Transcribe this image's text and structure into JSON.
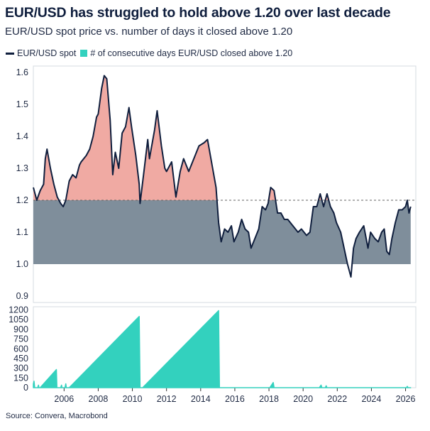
{
  "title": "EUR/USD has struggled to hold above 1.20 over last decade",
  "subtitle": "EUR/USD spot price vs. number of days it closed above 1.20",
  "legend": {
    "spot": "EUR/USD spot",
    "days": "# of consecutive days EUR/USD closed above 1.20"
  },
  "source": "Source: Convera, Macrobond",
  "colors": {
    "spot_line": "#0f1e3d",
    "area_below": "#7f8e9b",
    "area_above": "#f0aaa3",
    "days_area": "#33d1be",
    "reference_line": "#666666"
  },
  "chart_data": [
    {
      "type": "line",
      "title": "EUR/USD spot price",
      "series_name": "EUR/USD spot",
      "ylim": [
        0.88,
        1.62
      ],
      "yticks": [
        "0.9",
        "1.0",
        "1.1",
        "1.2",
        "1.3",
        "1.4",
        "1.5",
        "1.6"
      ],
      "xlim": [
        2004.2,
        2026.6
      ],
      "threshold": 1.2,
      "fill_base": 1.0,
      "points": [
        [
          2004.2,
          1.24
        ],
        [
          2004.4,
          1.2
        ],
        [
          2004.6,
          1.23
        ],
        [
          2004.8,
          1.25
        ],
        [
          2004.9,
          1.33
        ],
        [
          2005.0,
          1.36
        ],
        [
          2005.2,
          1.3
        ],
        [
          2005.4,
          1.25
        ],
        [
          2005.6,
          1.21
        ],
        [
          2005.8,
          1.19
        ],
        [
          2005.95,
          1.18
        ],
        [
          2006.1,
          1.2
        ],
        [
          2006.3,
          1.26
        ],
        [
          2006.5,
          1.28
        ],
        [
          2006.7,
          1.27
        ],
        [
          2006.9,
          1.31
        ],
        [
          2007.0,
          1.32
        ],
        [
          2007.3,
          1.34
        ],
        [
          2007.5,
          1.36
        ],
        [
          2007.7,
          1.4
        ],
        [
          2007.9,
          1.46
        ],
        [
          2008.0,
          1.47
        ],
        [
          2008.2,
          1.55
        ],
        [
          2008.35,
          1.59
        ],
        [
          2008.5,
          1.58
        ],
        [
          2008.7,
          1.45
        ],
        [
          2008.85,
          1.28
        ],
        [
          2009.0,
          1.35
        ],
        [
          2009.2,
          1.3
        ],
        [
          2009.4,
          1.41
        ],
        [
          2009.6,
          1.43
        ],
        [
          2009.8,
          1.49
        ],
        [
          2009.95,
          1.43
        ],
        [
          2010.2,
          1.34
        ],
        [
          2010.4,
          1.25
        ],
        [
          2010.45,
          1.19
        ],
        [
          2010.7,
          1.3
        ],
        [
          2010.9,
          1.39
        ],
        [
          2011.0,
          1.33
        ],
        [
          2011.3,
          1.42
        ],
        [
          2011.45,
          1.48
        ],
        [
          2011.7,
          1.37
        ],
        [
          2011.9,
          1.3
        ],
        [
          2012.0,
          1.29
        ],
        [
          2012.3,
          1.32
        ],
        [
          2012.55,
          1.21
        ],
        [
          2012.8,
          1.29
        ],
        [
          2013.0,
          1.33
        ],
        [
          2013.3,
          1.29
        ],
        [
          2013.6,
          1.33
        ],
        [
          2013.9,
          1.37
        ],
        [
          2014.2,
          1.38
        ],
        [
          2014.4,
          1.39
        ],
        [
          2014.7,
          1.3
        ],
        [
          2014.9,
          1.24
        ],
        [
          2015.05,
          1.13
        ],
        [
          2015.2,
          1.07
        ],
        [
          2015.4,
          1.11
        ],
        [
          2015.6,
          1.1
        ],
        [
          2015.8,
          1.12
        ],
        [
          2015.95,
          1.07
        ],
        [
          2016.2,
          1.1
        ],
        [
          2016.4,
          1.14
        ],
        [
          2016.6,
          1.11
        ],
        [
          2016.8,
          1.1
        ],
        [
          2016.95,
          1.05
        ],
        [
          2017.1,
          1.07
        ],
        [
          2017.4,
          1.11
        ],
        [
          2017.6,
          1.18
        ],
        [
          2017.8,
          1.17
        ],
        [
          2017.95,
          1.19
        ],
        [
          2018.1,
          1.24
        ],
        [
          2018.3,
          1.23
        ],
        [
          2018.5,
          1.16
        ],
        [
          2018.7,
          1.16
        ],
        [
          2018.9,
          1.14
        ],
        [
          2019.1,
          1.14
        ],
        [
          2019.4,
          1.12
        ],
        [
          2019.7,
          1.1
        ],
        [
          2019.9,
          1.11
        ],
        [
          2020.2,
          1.09
        ],
        [
          2020.4,
          1.1
        ],
        [
          2020.6,
          1.18
        ],
        [
          2020.8,
          1.18
        ],
        [
          2021.0,
          1.22
        ],
        [
          2021.2,
          1.18
        ],
        [
          2021.4,
          1.22
        ],
        [
          2021.6,
          1.18
        ],
        [
          2021.8,
          1.16
        ],
        [
          2021.95,
          1.13
        ],
        [
          2022.2,
          1.1
        ],
        [
          2022.4,
          1.05
        ],
        [
          2022.6,
          1.0
        ],
        [
          2022.8,
          0.96
        ],
        [
          2022.95,
          1.05
        ],
        [
          2023.1,
          1.08
        ],
        [
          2023.3,
          1.1
        ],
        [
          2023.55,
          1.12
        ],
        [
          2023.8,
          1.05
        ],
        [
          2023.95,
          1.1
        ],
        [
          2024.2,
          1.08
        ],
        [
          2024.4,
          1.07
        ],
        [
          2024.6,
          1.1
        ],
        [
          2024.75,
          1.11
        ],
        [
          2024.9,
          1.04
        ],
        [
          2025.05,
          1.03
        ],
        [
          2025.2,
          1.08
        ],
        [
          2025.4,
          1.13
        ],
        [
          2025.6,
          1.17
        ],
        [
          2025.8,
          1.17
        ],
        [
          2026.0,
          1.18
        ],
        [
          2026.1,
          1.2
        ],
        [
          2026.2,
          1.16
        ],
        [
          2026.3,
          1.18
        ]
      ]
    },
    {
      "type": "area",
      "title": "# of consecutive days EUR/USD closed above 1.20",
      "series_name": "# of consecutive days EUR/USD closed above 1.20",
      "ylim": [
        0,
        1250
      ],
      "yticks": [
        "0",
        "150",
        "300",
        "450",
        "600",
        "750",
        "900",
        "1050",
        "1200"
      ],
      "xticks": [
        "2006",
        "2008",
        "2010",
        "2012",
        "2014",
        "2016",
        "2018",
        "2020",
        "2022",
        "2024",
        "2026"
      ],
      "xlim": [
        2004.2,
        2026.6
      ],
      "points": [
        [
          2004.2,
          60
        ],
        [
          2004.24,
          100
        ],
        [
          2004.28,
          0
        ],
        [
          2004.45,
          0
        ],
        [
          2004.5,
          40
        ],
        [
          2004.53,
          0
        ],
        [
          2004.6,
          0
        ],
        [
          2005.55,
          280
        ],
        [
          2005.58,
          0
        ],
        [
          2005.8,
          0
        ],
        [
          2005.85,
          40
        ],
        [
          2005.88,
          0
        ],
        [
          2006.05,
          0
        ],
        [
          2006.1,
          60
        ],
        [
          2006.13,
          0
        ],
        [
          2006.3,
          0
        ],
        [
          2010.4,
          1100
        ],
        [
          2010.45,
          0
        ],
        [
          2010.6,
          0
        ],
        [
          2015.05,
          1190
        ],
        [
          2015.1,
          0
        ],
        [
          2018.05,
          0
        ],
        [
          2018.25,
          80
        ],
        [
          2018.3,
          0
        ],
        [
          2020.95,
          0
        ],
        [
          2021.05,
          40
        ],
        [
          2021.1,
          0
        ],
        [
          2021.3,
          0
        ],
        [
          2021.35,
          30
        ],
        [
          2021.4,
          0
        ],
        [
          2026.05,
          0
        ],
        [
          2026.1,
          20
        ],
        [
          2026.15,
          0
        ],
        [
          2026.3,
          0
        ]
      ]
    }
  ]
}
